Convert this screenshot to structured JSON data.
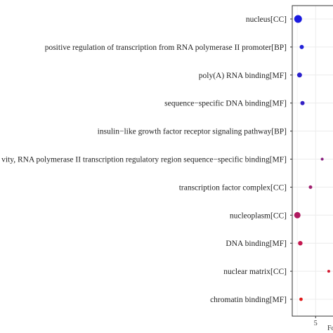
{
  "chart_data": {
    "type": "scatter",
    "title": "",
    "xlabel": "Fo",
    "ylabel": "",
    "x_ticks": [
      5
    ],
    "xlim": [
      1.8,
      9.5
    ],
    "grid": true,
    "categories": [
      "nucleus[CC]",
      "positive regulation of transcription from RNA polymerase II promoter[BP]",
      "poly(A) RNA binding[MF]",
      "sequence−specific DNA binding[MF]",
      "insulin−like growth factor receptor signaling pathway[BP]",
      "vity, RNA polymerase II transcription regulatory region sequence−specific binding[MF]",
      "transcription factor complex[CC]",
      "nucleoplasm[CC]",
      "DNA binding[MF]",
      "nuclear matrix[CC]",
      "chromatin binding[MF]"
    ],
    "points": [
      {
        "term": "nucleus[CC]",
        "x": 2.6,
        "r": 5.5,
        "color": "#1a1ae0"
      },
      {
        "term": "positive regulation of transcription from RNA polymerase II promoter[BP]",
        "x": 3.1,
        "r": 3.0,
        "color": "#2222d8"
      },
      {
        "term": "poly(A) RNA binding[MF]",
        "x": 2.8,
        "r": 3.5,
        "color": "#2a20cc"
      },
      {
        "term": "sequence−specific DNA binding[MF]",
        "x": 3.2,
        "r": 3.0,
        "color": "#3320c4"
      },
      {
        "term": "insulin−like growth factor receptor signaling pathway[BP]",
        "x": null,
        "r": 0,
        "color": "#ffffff"
      },
      {
        "term": "vity, RNA polymerase II transcription regulatory region sequence−specific binding[MF]",
        "x": 5.9,
        "r": 2.0,
        "color": "#8a2080"
      },
      {
        "term": "transcription factor complex[CC]",
        "x": 4.3,
        "r": 2.5,
        "color": "#a02070"
      },
      {
        "term": "nucleoplasm[CC]",
        "x": 2.5,
        "r": 4.5,
        "color": "#b01a60"
      },
      {
        "term": "DNA binding[MF]",
        "x": 2.9,
        "r": 3.2,
        "color": "#c41850"
      },
      {
        "term": "nuclear matrix[CC]",
        "x": 6.8,
        "r": 2.0,
        "color": "#d41a30"
      },
      {
        "term": "chromatin binding[MF]",
        "x": 3.0,
        "r": 2.4,
        "color": "#e01818"
      }
    ]
  }
}
